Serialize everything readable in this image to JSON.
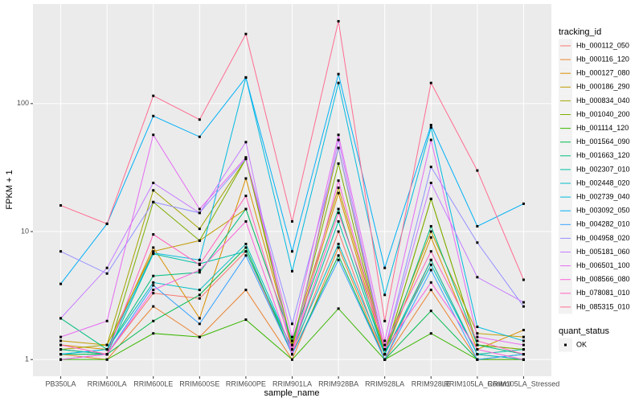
{
  "chart_data": {
    "type": "line",
    "x_label": "sample_name",
    "y_label": "FPKM + 1",
    "log_y": true,
    "grid": true,
    "legend_position": "right",
    "legend_title": "tracking_id",
    "point_legend": {
      "title": "quant_status",
      "labels": [
        "OK"
      ],
      "color": "#000000"
    },
    "categories": [
      "PB350LA",
      "RRIM600LA",
      "RRIM600LE",
      "RRIM600SE",
      "RRIM600PE",
      "RRIM901LA",
      "RRIM928BA",
      "RRIM928LA",
      "RRIM928LE",
      "RRIM105LA_Control",
      "RRIM105LA_Stressed"
    ],
    "ylim": [
      0.74,
      600
    ],
    "yticks": [
      1,
      10,
      100
    ],
    "series": [
      {
        "name": "Hb_000112_050",
        "color": "#F8766D",
        "values": [
          1.2,
          1.1,
          3.3,
          3.0,
          7,
          1.1,
          10,
          1.0,
          6,
          1.1,
          1.0
        ]
      },
      {
        "name": "Hb_000116_120",
        "color": "#EA8331",
        "values": [
          1.1,
          1.0,
          2.6,
          1.5,
          3.5,
          1.0,
          7.5,
          1.0,
          3.5,
          1.0,
          1.0
        ]
      },
      {
        "name": "Hb_000127_080",
        "color": "#D89000",
        "values": [
          1.3,
          1.2,
          7.5,
          2.1,
          26,
          1.3,
          20,
          1.1,
          9,
          1.2,
          1.7
        ]
      },
      {
        "name": "Hb_000186_290",
        "color": "#C09B00",
        "values": [
          1.4,
          1.3,
          7,
          8.5,
          15,
          1.4,
          22,
          1.2,
          10,
          1.6,
          1.5
        ]
      },
      {
        "name": "Hb_000834_040",
        "color": "#A3A500",
        "values": [
          1.2,
          1.3,
          21,
          10.5,
          37,
          1.2,
          45,
          1.1,
          18,
          1.3,
          1.2
        ]
      },
      {
        "name": "Hb_001040_200",
        "color": "#7CAE00",
        "values": [
          1.2,
          1.1,
          17,
          8.5,
          37,
          1.3,
          34,
          1.1,
          18,
          1.3,
          1.2
        ]
      },
      {
        "name": "Hb_001114_120",
        "color": "#39B600",
        "values": [
          1.0,
          1.0,
          1.6,
          1.5,
          2.05,
          1.0,
          2.5,
          1.0,
          1.6,
          1.0,
          1.0
        ]
      },
      {
        "name": "Hb_001564_090",
        "color": "#00BB4E",
        "values": [
          1.1,
          1.1,
          2.0,
          3.2,
          7.5,
          1.1,
          6.5,
          1.0,
          2.4,
          1.0,
          1.1
        ]
      },
      {
        "name": "Hb_001663_120",
        "color": "#00BF7D",
        "values": [
          2.1,
          1.2,
          4.5,
          4.8,
          15,
          1.4,
          15,
          1.1,
          11,
          1.3,
          1.1
        ]
      },
      {
        "name": "Hb_002307_010",
        "color": "#00C1A3",
        "values": [
          1.2,
          1.1,
          6.7,
          5.6,
          7,
          1.2,
          12,
          1.1,
          6,
          1.1,
          1.2
        ]
      },
      {
        "name": "Hb_002448_020",
        "color": "#00BFC4",
        "values": [
          1.1,
          1.2,
          4,
          3.5,
          8,
          1.2,
          8,
          1.1,
          5.5,
          1.1,
          1.0
        ]
      },
      {
        "name": "Hb_002739_040",
        "color": "#00BAE0",
        "values": [
          1.1,
          1.2,
          6.8,
          6,
          160,
          4.9,
          145,
          3.2,
          65,
          1.8,
          1.4
        ]
      },
      {
        "name": "Hb_003092_050",
        "color": "#00B0F6",
        "values": [
          3.9,
          11.5,
          80,
          55,
          160,
          7,
          170,
          5.2,
          68,
          11,
          16.5
        ]
      },
      {
        "name": "Hb_004282_010",
        "color": "#35A2FF",
        "values": [
          1.0,
          1.1,
          3.8,
          1.9,
          6.5,
          1.1,
          6,
          1.0,
          5,
          1.0,
          1.1
        ]
      },
      {
        "name": "Hb_004958_020",
        "color": "#9590FF",
        "values": [
          7,
          4.7,
          17,
          14,
          37,
          1.9,
          45,
          1.2,
          32,
          8.2,
          2.6
        ]
      },
      {
        "name": "Hb_005181_060",
        "color": "#C77CFF",
        "values": [
          2.1,
          5.2,
          24,
          14,
          50,
          1.1,
          52,
          1.2,
          24,
          4.4,
          2.8
        ]
      },
      {
        "name": "Hb_006501_100",
        "color": "#E76BF3",
        "values": [
          1.5,
          2,
          57,
          15,
          38,
          1.5,
          57,
          1.4,
          52,
          1.5,
          1.3
        ]
      },
      {
        "name": "Hb_008566_080",
        "color": "#FA62DB",
        "values": [
          1.0,
          1.1,
          3.5,
          5,
          12,
          1.1,
          25,
          1.2,
          4,
          1.2,
          1.0
        ]
      },
      {
        "name": "Hb_078081_010",
        "color": "#FF62BC",
        "values": [
          1.3,
          1.1,
          9.5,
          5.5,
          19,
          1.2,
          14,
          1.3,
          7,
          1.4,
          1.1
        ]
      },
      {
        "name": "Hb_085315_010",
        "color": "#FF6C91",
        "values": [
          16,
          11.5,
          115,
          75,
          350,
          12,
          440,
          2,
          145,
          30,
          4.2
        ]
      }
    ]
  }
}
